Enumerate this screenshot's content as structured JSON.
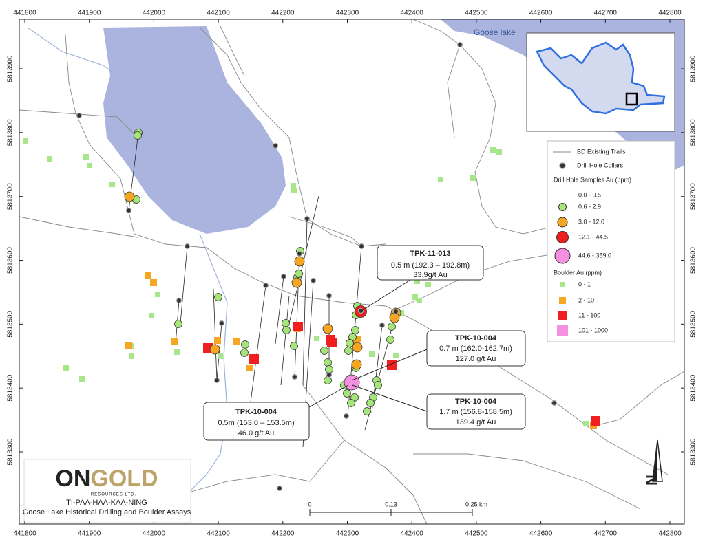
{
  "map": {
    "easting_ticks": [
      441800,
      441900,
      442000,
      442100,
      442200,
      442300,
      442400,
      442500,
      442600,
      442700,
      442800
    ],
    "northing_ticks": [
      5813300,
      5813400,
      5813500,
      5813600,
      5813700,
      5813800,
      5813900
    ],
    "lake_label": "Goose lake",
    "north_label": "N",
    "legend": {
      "trails": "BD Existing Trails",
      "collars": "Drill Hole Collars",
      "samples_title": "Drill Hole Samples Au (ppm)",
      "samples": [
        "0.0 - 0.5",
        "0.6 - 2.9",
        "3.0 - 12.0",
        "12.1 - 44.5",
        "44.6 - 359.0"
      ],
      "boulder_title": "Boulder Au (ppm)",
      "boulders": [
        "0 - 1",
        "2 - 10",
        "11 - 100",
        "101 - 1000"
      ]
    },
    "callouts": [
      {
        "hole": "TPK-11-013",
        "lines": [
          "0.5 m (192.3 – 192.8m)",
          "33.9g/t Au"
        ]
      },
      {
        "hole": "TPK-10-004",
        "lines": [
          "0.7 m (162.0-162.7m)",
          "127.0 g/t Au"
        ]
      },
      {
        "hole": "TPK-10-004",
        "lines": [
          "1.7 m (156.8-158.5m)",
          "139.4 g/t Au"
        ]
      },
      {
        "hole": "TPK-10-004",
        "lines": [
          "0.5m (153.0 – 153.5m)",
          "46.0 g/t Au"
        ]
      }
    ],
    "scale_bar": {
      "labels": [
        "0",
        "0.13",
        "0.25 km"
      ]
    },
    "logo": {
      "name_on": "ON",
      "name_gold": "GOLD",
      "subtitle": "RESOURCES LTD.",
      "project": "TI-PAA-HAA-KAA-NING",
      "caption": "Goose Lake Historical Drilling and Boulder Assays"
    }
  }
}
